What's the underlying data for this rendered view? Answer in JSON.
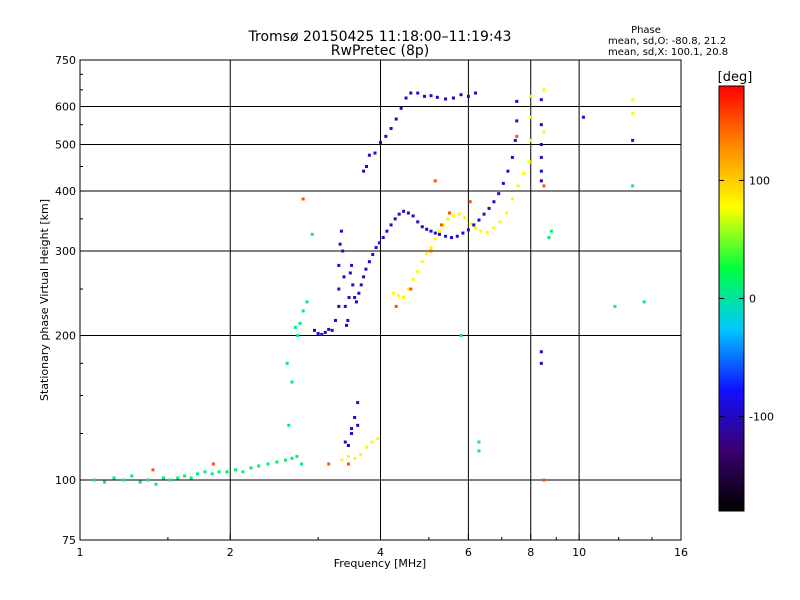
{
  "chart_data": {
    "type": "scatter",
    "title": "Tromsø 20150425 11:18:00–11:19:43",
    "subtitle": "RwPretec (8p)",
    "info": {
      "heading": "Phase",
      "line1": "mean, sd,O: -80.8, 21.2",
      "line2": "mean, sd,X: 100.1, 20.8"
    },
    "xlabel": "Frequency [MHz]",
    "ylabel": "Stationary phase Virtual Height [km]",
    "x_scale": "log",
    "y_scale": "log",
    "xlim": [
      1,
      16
    ],
    "ylim": [
      75,
      750
    ],
    "grid": true,
    "x_ticks": [
      1,
      2,
      4,
      6,
      8,
      10,
      16
    ],
    "x_tick_labels": [
      "1",
      "2",
      "4",
      "6",
      "8",
      "10",
      "16"
    ],
    "y_ticks": [
      75,
      100,
      200,
      300,
      400,
      500,
      600,
      750
    ],
    "y_tick_labels": [
      "75",
      "100",
      "200",
      "300",
      "400",
      "500",
      "600",
      "750"
    ],
    "colorbar": {
      "label": "[deg]",
      "range": [
        -180,
        180
      ],
      "ticks": [
        100,
        0,
        -100
      ],
      "tick_labels": [
        "100",
        "0",
        "-100"
      ],
      "colors": [
        "#000000",
        "#3a0070",
        "#1010ff",
        "#00c8ff",
        "#00ff40",
        "#ffff00",
        "#ff8c00",
        "#ff0000"
      ]
    },
    "series": [
      {
        "phase": 10,
        "points": [
          [
            1.07,
            100
          ],
          [
            1.12,
            99
          ],
          [
            1.17,
            101
          ],
          [
            1.22,
            100
          ],
          [
            1.27,
            102
          ],
          [
            1.32,
            99
          ],
          [
            1.37,
            100
          ],
          [
            1.42,
            98
          ],
          [
            1.47,
            101
          ],
          [
            1.52,
            100
          ],
          [
            1.57,
            101
          ],
          [
            1.62,
            102
          ],
          [
            1.67,
            101
          ],
          [
            1.72,
            103
          ],
          [
            1.78,
            104
          ],
          [
            1.84,
            103
          ],
          [
            1.9,
            104
          ],
          [
            1.97,
            104
          ],
          [
            2.05,
            105
          ],
          [
            2.12,
            104
          ],
          [
            2.2,
            106
          ],
          [
            2.28,
            107
          ],
          [
            2.38,
            108
          ],
          [
            2.48,
            109
          ],
          [
            2.58,
            110
          ],
          [
            2.66,
            111
          ],
          [
            2.72,
            112
          ],
          [
            2.78,
            108
          ],
          [
            2.62,
            130
          ],
          [
            2.66,
            160
          ],
          [
            2.6,
            175
          ],
          [
            2.7,
            208
          ],
          [
            2.73,
            200
          ],
          [
            2.76,
            212
          ],
          [
            2.8,
            225
          ],
          [
            2.85,
            235
          ],
          [
            2.92,
            325
          ],
          [
            5.8,
            200
          ],
          [
            6.3,
            120
          ],
          [
            6.3,
            115
          ],
          [
            8.7,
            320
          ],
          [
            8.8,
            330
          ],
          [
            11.8,
            230
          ],
          [
            13.5,
            235
          ],
          [
            12.8,
            410
          ]
        ]
      },
      {
        "phase": -95,
        "points": [
          [
            2.95,
            205
          ],
          [
            3.0,
            202
          ],
          [
            3.05,
            201
          ],
          [
            3.1,
            203
          ],
          [
            3.15,
            206
          ],
          [
            3.2,
            205
          ],
          [
            3.25,
            215
          ],
          [
            3.3,
            230
          ],
          [
            3.3,
            250
          ],
          [
            3.3,
            280
          ],
          [
            3.32,
            310
          ],
          [
            3.34,
            330
          ],
          [
            3.36,
            300
          ],
          [
            3.38,
            265
          ],
          [
            3.4,
            230
          ],
          [
            3.42,
            210
          ],
          [
            3.44,
            215
          ],
          [
            3.46,
            240
          ],
          [
            3.48,
            270
          ],
          [
            3.5,
            280
          ],
          [
            3.52,
            255
          ],
          [
            3.55,
            240
          ],
          [
            3.58,
            235
          ],
          [
            3.62,
            245
          ],
          [
            3.66,
            255
          ],
          [
            3.7,
            265
          ],
          [
            3.74,
            275
          ],
          [
            3.8,
            285
          ],
          [
            3.86,
            295
          ],
          [
            3.92,
            305
          ],
          [
            3.98,
            312
          ],
          [
            4.05,
            320
          ],
          [
            4.12,
            330
          ],
          [
            4.2,
            340
          ],
          [
            4.28,
            350
          ],
          [
            4.36,
            358
          ],
          [
            4.45,
            363
          ],
          [
            4.55,
            360
          ],
          [
            4.65,
            355
          ],
          [
            4.75,
            345
          ],
          [
            4.85,
            337
          ],
          [
            4.95,
            333
          ],
          [
            5.05,
            330
          ],
          [
            5.15,
            327
          ],
          [
            5.25,
            325
          ],
          [
            5.4,
            322
          ],
          [
            5.55,
            320
          ],
          [
            5.7,
            322
          ],
          [
            5.85,
            327
          ],
          [
            6.0,
            332
          ],
          [
            6.15,
            340
          ],
          [
            6.3,
            348
          ],
          [
            6.45,
            358
          ],
          [
            6.6,
            368
          ],
          [
            6.75,
            380
          ],
          [
            6.9,
            395
          ],
          [
            7.05,
            415
          ],
          [
            7.2,
            440
          ],
          [
            7.35,
            470
          ],
          [
            7.45,
            510
          ],
          [
            7.5,
            560
          ],
          [
            7.5,
            615
          ],
          [
            3.4,
            120
          ],
          [
            3.45,
            118
          ],
          [
            3.5,
            125
          ],
          [
            3.55,
            135
          ],
          [
            3.5,
            128
          ],
          [
            3.6,
            130
          ],
          [
            3.6,
            145
          ],
          [
            3.7,
            440
          ],
          [
            3.75,
            450
          ],
          [
            3.8,
            475
          ],
          [
            3.9,
            480
          ],
          [
            4.0,
            505
          ],
          [
            4.1,
            520
          ],
          [
            4.2,
            540
          ],
          [
            4.3,
            565
          ],
          [
            4.4,
            595
          ],
          [
            4.5,
            625
          ],
          [
            4.6,
            640
          ],
          [
            4.75,
            640
          ],
          [
            4.9,
            630
          ],
          [
            5.05,
            632
          ],
          [
            5.2,
            627
          ],
          [
            5.4,
            622
          ],
          [
            5.6,
            625
          ],
          [
            5.8,
            635
          ],
          [
            6.0,
            630
          ],
          [
            6.2,
            640
          ],
          [
            8.4,
            185
          ],
          [
            8.4,
            175
          ],
          [
            8.4,
            420
          ],
          [
            8.4,
            440
          ],
          [
            8.4,
            470
          ],
          [
            8.4,
            500
          ],
          [
            8.4,
            550
          ],
          [
            8.4,
            620
          ],
          [
            10.2,
            570
          ],
          [
            12.8,
            510
          ]
        ]
      },
      {
        "phase": 80,
        "points": [
          [
            3.35,
            110
          ],
          [
            3.45,
            112
          ],
          [
            3.55,
            111
          ],
          [
            3.65,
            113
          ],
          [
            3.75,
            117
          ],
          [
            3.85,
            120
          ],
          [
            3.95,
            122
          ],
          [
            4.25,
            245
          ],
          [
            4.35,
            242
          ],
          [
            4.45,
            240
          ],
          [
            4.55,
            250
          ],
          [
            4.65,
            262
          ],
          [
            4.75,
            272
          ],
          [
            4.85,
            285
          ],
          [
            4.95,
            296
          ],
          [
            5.05,
            305
          ],
          [
            5.15,
            318
          ],
          [
            5.25,
            330
          ],
          [
            5.35,
            340
          ],
          [
            5.45,
            350
          ],
          [
            5.6,
            355
          ],
          [
            5.75,
            358
          ],
          [
            5.9,
            352
          ],
          [
            6.05,
            342
          ],
          [
            6.2,
            335
          ],
          [
            6.35,
            330
          ],
          [
            6.55,
            328
          ],
          [
            6.75,
            335
          ],
          [
            6.95,
            345
          ],
          [
            7.15,
            360
          ],
          [
            7.35,
            385
          ],
          [
            7.55,
            410
          ],
          [
            7.75,
            435
          ],
          [
            7.95,
            460
          ],
          [
            8.0,
            510
          ],
          [
            8.0,
            570
          ],
          [
            8.0,
            630
          ],
          [
            8.5,
            650
          ],
          [
            8.5,
            530
          ],
          [
            12.8,
            580
          ],
          [
            12.8,
            620
          ]
        ]
      },
      {
        "phase": 150,
        "points": [
          [
            1.4,
            105
          ],
          [
            1.85,
            108
          ],
          [
            3.15,
            108
          ],
          [
            3.45,
            108
          ],
          [
            4.3,
            230
          ],
          [
            4.6,
            250
          ],
          [
            5.05,
            300
          ],
          [
            5.3,
            340
          ],
          [
            5.5,
            360
          ],
          [
            6.05,
            380
          ],
          [
            7.5,
            520
          ],
          [
            5.15,
            420
          ],
          [
            2.8,
            385
          ],
          [
            8.5,
            100
          ],
          [
            8.5,
            410
          ]
        ]
      }
    ]
  }
}
